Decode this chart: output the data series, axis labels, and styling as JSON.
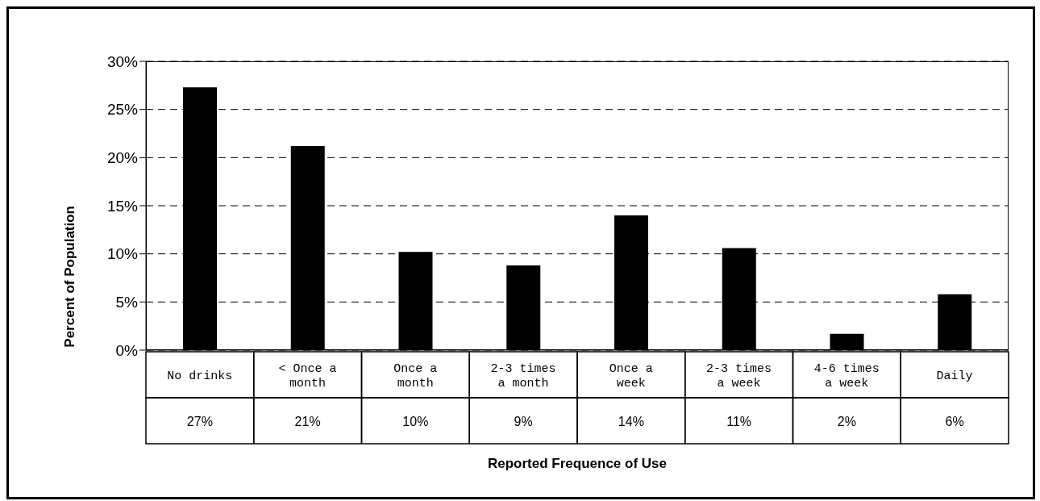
{
  "chart_data": {
    "type": "bar",
    "xlabel": "Reported Frequence of Use",
    "ylabel": "Percent of Population",
    "categories": [
      "No drinks",
      "< Once a month",
      "Once a month",
      "2-3 times a month",
      "Once a week",
      "2-3 times a week",
      "4-6 times a week",
      "Daily"
    ],
    "values": [
      27.3,
      21.2,
      10.2,
      8.8,
      14.0,
      10.6,
      1.7,
      5.8
    ],
    "value_labels": [
      "27%",
      "21%",
      "10%",
      "9%",
      "14%",
      "11%",
      "2%",
      "6%"
    ],
    "color": "#000000",
    "ylim": [
      0,
      30
    ],
    "yticks": [
      {
        "value": 0,
        "label": "0%"
      },
      {
        "value": 5,
        "label": "5%"
      },
      {
        "value": 10,
        "label": "10%"
      },
      {
        "value": 15,
        "label": "15%"
      },
      {
        "value": 20,
        "label": "20%"
      },
      {
        "value": 25,
        "label": "25%"
      },
      {
        "value": 30,
        "label": "30%"
      }
    ],
    "grid": "y"
  }
}
